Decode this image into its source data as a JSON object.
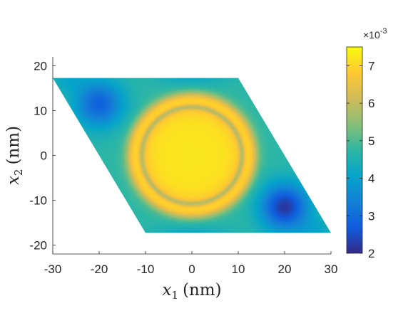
{
  "chart_data": {
    "type": "heatmap",
    "title": "",
    "xlabel": {
      "symbol": "x",
      "subscript": "1",
      "unit": "(nm)"
    },
    "ylabel": {
      "symbol": "x",
      "subscript": "2",
      "unit": "(nm)"
    },
    "xlim": [
      -30,
      30
    ],
    "ylim": [
      -22,
      22
    ],
    "x_ticks": [
      -30,
      -20,
      -10,
      0,
      10,
      20,
      30
    ],
    "y_ticks": [
      -20,
      -10,
      0,
      10,
      20
    ],
    "domain": {
      "shape": "parallelogram",
      "vertices": [
        [
          -30,
          17.3
        ],
        [
          10,
          17.3
        ],
        [
          30,
          -17.3
        ],
        [
          -10,
          -17.3
        ]
      ]
    },
    "features": [
      {
        "kind": "plateau",
        "center": [
          0,
          0
        ],
        "radius": 10.5,
        "value": 0.0072
      },
      {
        "kind": "ring",
        "center": [
          0,
          0
        ],
        "radius": 11.5,
        "value": 0.0068
      },
      {
        "kind": "minimum",
        "center": [
          -20,
          11.5
        ],
        "value": 0.0028
      },
      {
        "kind": "minimum",
        "center": [
          20,
          -11.5
        ],
        "value": 0.0022
      }
    ],
    "colorbar": {
      "colormap": "parula",
      "range": [
        2,
        7.5
      ],
      "ticks": [
        2,
        3,
        4,
        5,
        6,
        7
      ],
      "multiplier": "×10",
      "exponent": "-3",
      "position": "right"
    },
    "grid": false
  }
}
